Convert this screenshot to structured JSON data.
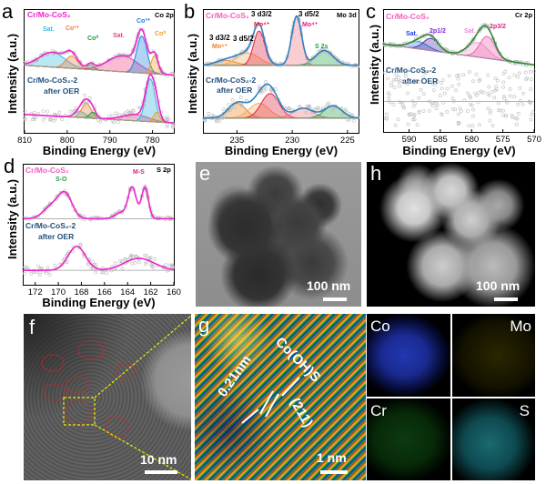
{
  "figure": {
    "panel_letters": [
      "a",
      "b",
      "c",
      "d",
      "e",
      "f",
      "g",
      "h"
    ],
    "xlabel": "Binding Energy (eV)",
    "ylabel": "Intensity (a.u.)",
    "series_top": "Cr/Mo-CoS₂",
    "series_bottom_1": "Cr/Mo-CoS₂-2",
    "series_bottom_2": "after OER",
    "colors": {
      "magenta": "#ee22cc",
      "navy": "#1f4e79",
      "pink_label": "#f060c0"
    }
  },
  "chart_data": [
    {
      "id": "a",
      "type": "line",
      "title": "Co 2p",
      "xlim": [
        810,
        775
      ],
      "xticks": [
        810,
        800,
        790,
        780
      ],
      "envelope_color": "#ee22cc",
      "top": {
        "baseline": [
          0.55,
          0.47
        ],
        "peaks": [
          {
            "label": "Sat.",
            "center": 803.5,
            "height": 0.12,
            "width": 3,
            "color": "#30c0e0"
          },
          {
            "label": "Co2+",
            "center": 799,
            "height": 0.1,
            "width": 1.4,
            "color": "#f08040"
          },
          {
            "label": "Co0",
            "center": 794.5,
            "height": 0.04,
            "width": 0.8,
            "color": "#20a040"
          },
          {
            "label": "Sat.",
            "center": 787,
            "height": 0.13,
            "width": 3.5,
            "color": "#f04080"
          },
          {
            "label": "Co3+",
            "center": 782.5,
            "height": 0.3,
            "width": 1.2,
            "color": "#2080e0"
          },
          {
            "label": "Co0",
            "center": 779.5,
            "height": 0.15,
            "width": 0.8,
            "color": "#f0a020"
          }
        ]
      },
      "bottom": {
        "baseline": [
          0.15,
          0.08
        ],
        "peaks": [
          {
            "center": 797,
            "height": 0.05,
            "width": 1.3,
            "color": "#30c0e0"
          },
          {
            "center": 795.5,
            "height": 0.12,
            "width": 1.1,
            "color": "#f08040"
          },
          {
            "center": 794,
            "height": 0.05,
            "width": 0.8,
            "color": "#20a040"
          },
          {
            "center": 784,
            "height": 0.05,
            "width": 3,
            "color": "#f04080"
          },
          {
            "center": 780.5,
            "height": 0.35,
            "width": 1.1,
            "color": "#30b0e0"
          },
          {
            "center": 779,
            "height": 0.08,
            "width": 0.7,
            "color": "#f0a020"
          }
        ]
      },
      "annotations": [
        {
          "text": "Sat.",
          "color": "#30c0e0"
        },
        {
          "text": "Co²⁺",
          "color": "#f08040"
        },
        {
          "text": "Co⁰",
          "color": "#20a040"
        },
        {
          "text": "Sat.",
          "color": "#f04080"
        },
        {
          "text": "Co³⁺",
          "color": "#2080e0"
        },
        {
          "text": "Co⁰",
          "color": "#f0a020"
        }
      ]
    },
    {
      "id": "b",
      "type": "line",
      "title": "Mo 3d",
      "xlim": [
        238,
        224
      ],
      "xticks": [
        235,
        230,
        225
      ],
      "envelope_color": "#2f7fc0",
      "top": {
        "baseline": [
          0.55,
          0.55
        ],
        "peaks": [
          {
            "center": 236,
            "height": 0.04,
            "width": 0.9,
            "color": "#f08020"
          },
          {
            "center": 234,
            "height": 0.1,
            "width": 1.0,
            "color": "#f0b060"
          },
          {
            "center": 233,
            "height": 0.28,
            "width": 0.5,
            "color": "#e02040"
          },
          {
            "center": 229.6,
            "height": 0.4,
            "width": 0.45,
            "color": "#f07080"
          },
          {
            "center": 227.1,
            "height": 0.12,
            "width": 0.8,
            "color": "#20a040"
          }
        ]
      },
      "bottom": {
        "baseline": [
          0.12,
          0.12
        ],
        "peaks": [
          {
            "center": 235,
            "height": 0.12,
            "width": 0.8,
            "color": "#f08020"
          },
          {
            "center": 233,
            "height": 0.12,
            "width": 0.9,
            "color": "#f0b060"
          },
          {
            "center": 232,
            "height": 0.2,
            "width": 0.8,
            "color": "#e02040"
          },
          {
            "center": 229,
            "height": 0.08,
            "width": 0.9,
            "color": "#f07080"
          },
          {
            "center": 226.3,
            "height": 0.1,
            "width": 0.8,
            "color": "#20a040"
          }
        ]
      },
      "annotations": [
        {
          "text": "3 d3/2",
          "color": "#000"
        },
        {
          "text": "Mo⁶⁺",
          "color": "#f08020"
        },
        {
          "text": "3 d5/2",
          "color": "#000"
        },
        {
          "text": "3 d3/2",
          "color": "#000"
        },
        {
          "text": "Mo⁴⁺",
          "color": "#e02040"
        },
        {
          "text": "3 d5/2",
          "color": "#000"
        },
        {
          "text": "Mo⁴⁺",
          "color": "#e02080"
        },
        {
          "text": "S 2s",
          "color": "#20a040"
        }
      ]
    },
    {
      "id": "c",
      "type": "line",
      "title": "Cr 2p",
      "xlim": [
        594,
        570
      ],
      "xticks": [
        590,
        585,
        580,
        575,
        570
      ],
      "envelope_color": "#2a8a30",
      "top": {
        "baseline": [
          0.72,
          0.55
        ],
        "peaks": [
          {
            "center": 588.5,
            "height": 0.06,
            "width": 1.5,
            "color": "#3080e0"
          },
          {
            "center": 586.5,
            "height": 0.1,
            "width": 1.2,
            "color": "#5030a0"
          },
          {
            "center": 579,
            "height": 0.12,
            "width": 1.6,
            "color": "#f0a0d0"
          },
          {
            "center": 577.5,
            "height": 0.18,
            "width": 1.2,
            "color": "#f060b0"
          }
        ]
      },
      "bottom": {
        "baseline": [
          0.25,
          0.25
        ],
        "peaks": [],
        "noise_only": true
      },
      "annotations": [
        {
          "text": "Sat.",
          "color": "#2040e0"
        },
        {
          "text": "2p1/2",
          "color": "#8020e0"
        },
        {
          "text": "Sat.",
          "color": "#f080e0"
        },
        {
          "text": "2p3/2",
          "color": "#e02080"
        }
      ]
    },
    {
      "id": "d",
      "type": "line",
      "title": "S 2p",
      "xlim": [
        173,
        160
      ],
      "xticks": [
        172,
        170,
        168,
        166,
        164,
        162,
        160
      ],
      "envelope_color": "#ee22cc",
      "top": {
        "baseline": [
          0.55,
          0.55
        ],
        "peaks": [
          {
            "center": 170.6,
            "height": 0.1,
            "width": 0.7,
            "color": "none"
          },
          {
            "center": 169.4,
            "height": 0.2,
            "width": 0.6,
            "color": "none"
          },
          {
            "center": 164.6,
            "height": 0.05,
            "width": 0.5,
            "color": "none"
          },
          {
            "center": 163.6,
            "height": 0.26,
            "width": 0.35,
            "color": "none"
          },
          {
            "center": 162.5,
            "height": 0.26,
            "width": 0.3,
            "color": "none"
          }
        ]
      },
      "bottom": {
        "baseline": [
          0.12,
          0.12
        ],
        "peaks": [
          {
            "center": 168.4,
            "height": 0.2,
            "width": 0.75,
            "color": "none"
          },
          {
            "center": 163,
            "height": 0.1,
            "width": 1.3,
            "color": "none"
          }
        ]
      },
      "annotations": [
        {
          "text": "S-O",
          "color": "#20a040"
        },
        {
          "text": "M-S",
          "color": "#e02080"
        }
      ]
    }
  ],
  "images": {
    "e": {
      "scale": "100 nm"
    },
    "h": {
      "scale": "100 nm"
    },
    "f": {
      "scale": "10 nm"
    },
    "g": {
      "scale": "1 nm",
      "d_spacing": "0.21nm",
      "phase": "Co(OH)S",
      "plane": "(211)"
    },
    "maps": [
      "Co",
      "Mo",
      "Cr",
      "S"
    ]
  }
}
